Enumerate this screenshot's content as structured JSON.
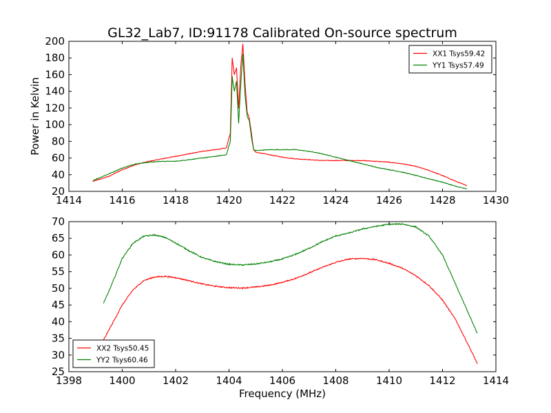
{
  "figure": {
    "title": "GL32_Lab7, ID:91178 Calibrated On-source spectrum",
    "ylabel": "Power in Kelvin",
    "xlabel": "Frequency (MHz)"
  },
  "colors": {
    "red": "#ff0000",
    "green": "#008000"
  },
  "chart_data": [
    {
      "type": "line",
      "title": "GL32_Lab7, ID:91178 Calibrated On-source spectrum",
      "xlabel": "",
      "ylabel": "Power in Kelvin",
      "xlim": [
        1414,
        1430
      ],
      "ylim": [
        20,
        200
      ],
      "xticks": [
        1414,
        1416,
        1418,
        1420,
        1422,
        1424,
        1426,
        1428,
        1430
      ],
      "yticks": [
        20,
        40,
        60,
        80,
        100,
        120,
        140,
        160,
        180,
        200
      ],
      "legend_position": "top-right",
      "grid": false,
      "series": [
        {
          "name": "XX1 Tsys59.42",
          "color": "#ff0000",
          "x": [
            1414.9,
            1415.5,
            1416,
            1416.5,
            1417,
            1417.5,
            1418,
            1418.5,
            1419,
            1419.5,
            1419.9,
            1420.05,
            1420.12,
            1420.2,
            1420.28,
            1420.36,
            1420.44,
            1420.52,
            1420.6,
            1420.68,
            1420.76,
            1420.84,
            1420.92,
            1421,
            1421.5,
            1422,
            1422.5,
            1423,
            1423.5,
            1424,
            1424.5,
            1425,
            1425.5,
            1426,
            1426.5,
            1427,
            1427.5,
            1428,
            1428.5,
            1428.9
          ],
          "y": [
            32,
            38,
            46,
            52,
            56,
            59,
            62,
            65,
            68,
            70,
            72,
            90,
            180,
            160,
            168,
            120,
            170,
            197,
            150,
            115,
            108,
            90,
            70,
            67,
            64,
            61,
            59,
            58,
            57,
            57,
            57,
            57,
            56,
            55,
            53,
            50,
            45,
            39,
            32,
            27
          ]
        },
        {
          "name": "YY1 Tsys57.49",
          "color": "#008000",
          "x": [
            1414.9,
            1415.5,
            1416,
            1416.5,
            1417,
            1417.5,
            1418,
            1418.5,
            1419,
            1419.5,
            1419.9,
            1420.05,
            1420.12,
            1420.2,
            1420.28,
            1420.36,
            1420.44,
            1420.52,
            1420.6,
            1420.68,
            1420.76,
            1420.84,
            1420.92,
            1421,
            1421.5,
            1422,
            1422.5,
            1423,
            1423.5,
            1424,
            1424.5,
            1425,
            1425.5,
            1426,
            1426.5,
            1427,
            1427.5,
            1428,
            1428.5,
            1428.9
          ],
          "y": [
            33,
            41,
            48,
            53,
            55,
            56,
            56,
            58,
            60,
            62,
            64,
            80,
            157,
            140,
            152,
            102,
            148,
            185,
            135,
            110,
            105,
            85,
            70,
            69,
            70,
            70,
            70,
            68,
            65,
            61,
            57,
            53,
            49,
            46,
            43,
            39,
            35,
            31,
            26,
            23
          ]
        }
      ]
    },
    {
      "type": "line",
      "title": "",
      "xlabel": "Frequency (MHz)",
      "ylabel": "",
      "xlim": [
        1398,
        1414
      ],
      "ylim": [
        25,
        70
      ],
      "xticks": [
        1398,
        1400,
        1402,
        1404,
        1406,
        1408,
        1410,
        1412,
        1414
      ],
      "yticks": [
        25,
        30,
        35,
        40,
        45,
        50,
        55,
        60,
        65,
        70
      ],
      "legend_position": "lower-left",
      "grid": false,
      "series": [
        {
          "name": "XX2 Tsys50.45",
          "color": "#ff0000",
          "x": [
            1399.3,
            1399.6,
            1400,
            1400.4,
            1400.8,
            1401.2,
            1401.6,
            1402,
            1402.5,
            1403,
            1403.5,
            1404,
            1404.5,
            1405,
            1405.5,
            1406,
            1406.5,
            1407,
            1407.5,
            1408,
            1408.5,
            1409,
            1409.5,
            1410,
            1410.5,
            1411,
            1411.5,
            1412,
            1412.5,
            1413,
            1413.3
          ],
          "y": [
            34.5,
            39,
            45,
            49.5,
            52.3,
            53.4,
            53.6,
            53.2,
            52.3,
            51.3,
            50.6,
            50.2,
            50.1,
            50.4,
            50.9,
            51.8,
            53,
            54.6,
            56.3,
            57.8,
            58.8,
            59,
            58.6,
            57.5,
            56,
            53.8,
            50.8,
            46.5,
            40.5,
            32.5,
            27.5
          ]
        },
        {
          "name": "YY2 Tsys60.46",
          "color": "#008000",
          "x": [
            1399.3,
            1399.6,
            1400,
            1400.4,
            1400.8,
            1401.2,
            1401.6,
            1402,
            1402.5,
            1403,
            1403.5,
            1404,
            1404.5,
            1405,
            1405.5,
            1406,
            1406.5,
            1407,
            1407.5,
            1408,
            1408.5,
            1409,
            1409.5,
            1410,
            1410.5,
            1411,
            1411.5,
            1412,
            1412.5,
            1413,
            1413.3
          ],
          "y": [
            45.5,
            51,
            59,
            63.5,
            65.6,
            66,
            65.3,
            63.6,
            61.3,
            59.2,
            58,
            57.2,
            57,
            57.3,
            57.9,
            58.8,
            60.2,
            62,
            64,
            65.7,
            66.6,
            67.8,
            68.6,
            69.2,
            69.3,
            68.4,
            65.6,
            60,
            51,
            42,
            36.5
          ]
        }
      ]
    }
  ]
}
